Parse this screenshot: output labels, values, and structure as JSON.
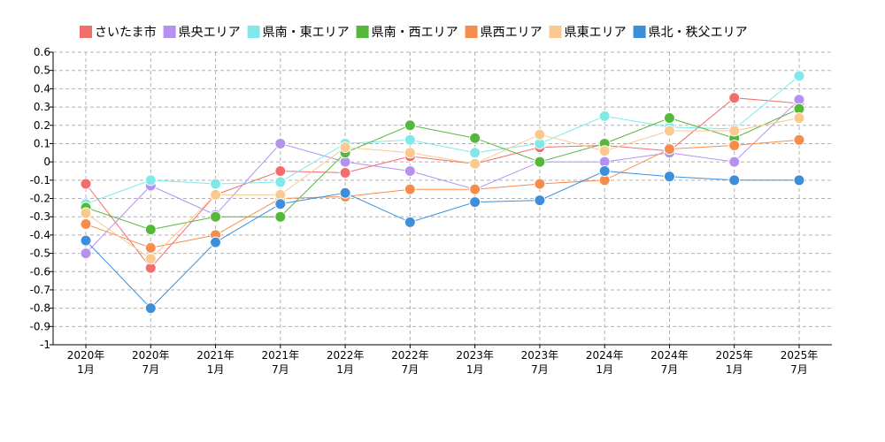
{
  "chart_data": {
    "type": "line",
    "title": "",
    "xlabel": "",
    "ylabel": "",
    "ylim": [
      -1,
      0.6
    ],
    "yticks": [
      -1,
      -0.9,
      -0.8,
      -0.7,
      -0.6,
      -0.5,
      -0.4,
      -0.3,
      -0.2,
      -0.1,
      0,
      0.1,
      0.2,
      0.3,
      0.4,
      0.5,
      0.6
    ],
    "ytick_labels": [
      "-1",
      "-0.9",
      "-0.8",
      "-0.7",
      "-0.6",
      "-0.5",
      "-0.4",
      "-0.3",
      "-0.2",
      "-0.1",
      "0",
      "0.1",
      "0.2",
      "0.3",
      "0.4",
      "0.5",
      "0.6"
    ],
    "categories": [
      [
        "2020年",
        "1月"
      ],
      [
        "2020年",
        "7月"
      ],
      [
        "2021年",
        "1月"
      ],
      [
        "2021年",
        "7月"
      ],
      [
        "2022年",
        "1月"
      ],
      [
        "2022年",
        "7月"
      ],
      [
        "2023年",
        "1月"
      ],
      [
        "2023年",
        "7月"
      ],
      [
        "2024年",
        "1月"
      ],
      [
        "2024年",
        "7月"
      ],
      [
        "2025年",
        "1月"
      ],
      [
        "2025年",
        "7月"
      ]
    ],
    "grid": true,
    "legend_position": "top",
    "series": [
      {
        "name": "さいたま市",
        "color": "#f46d6d",
        "values": [
          -0.12,
          -0.58,
          -0.18,
          -0.05,
          -0.06,
          0.03,
          -0.01,
          0.08,
          0.09,
          0.06,
          0.35,
          0.32
        ]
      },
      {
        "name": "県央エリア",
        "color": "#b591f0",
        "values": [
          -0.5,
          -0.13,
          -0.29,
          0.1,
          0.0,
          -0.05,
          -0.15,
          0.0,
          0.0,
          0.05,
          0.0,
          0.34
        ]
      },
      {
        "name": "県南・東エリア",
        "color": "#80e8e8",
        "values": [
          -0.23,
          -0.1,
          -0.12,
          -0.11,
          0.1,
          0.12,
          0.05,
          0.1,
          0.25,
          0.19,
          0.18,
          0.47
        ]
      },
      {
        "name": "県南・西エリア",
        "color": "#55b83a",
        "values": [
          -0.25,
          -0.37,
          -0.3,
          -0.3,
          0.05,
          0.2,
          0.13,
          0.0,
          0.1,
          0.24,
          0.13,
          0.29
        ]
      },
      {
        "name": "県西エリア",
        "color": "#f78d4c",
        "values": [
          -0.34,
          -0.47,
          -0.4,
          -0.2,
          -0.19,
          -0.15,
          -0.15,
          -0.12,
          -0.1,
          0.07,
          0.09,
          0.12
        ]
      },
      {
        "name": "県東エリア",
        "color": "#fac98f",
        "values": [
          -0.28,
          -0.53,
          -0.18,
          -0.18,
          0.08,
          0.05,
          -0.01,
          0.15,
          0.06,
          0.17,
          0.17,
          0.24
        ]
      },
      {
        "name": "県北・秩父エリア",
        "color": "#3e8fdb",
        "values": [
          -0.43,
          -0.8,
          -0.44,
          -0.23,
          -0.17,
          -0.33,
          -0.22,
          -0.21,
          -0.05,
          -0.08,
          -0.1,
          -0.1
        ]
      }
    ]
  }
}
